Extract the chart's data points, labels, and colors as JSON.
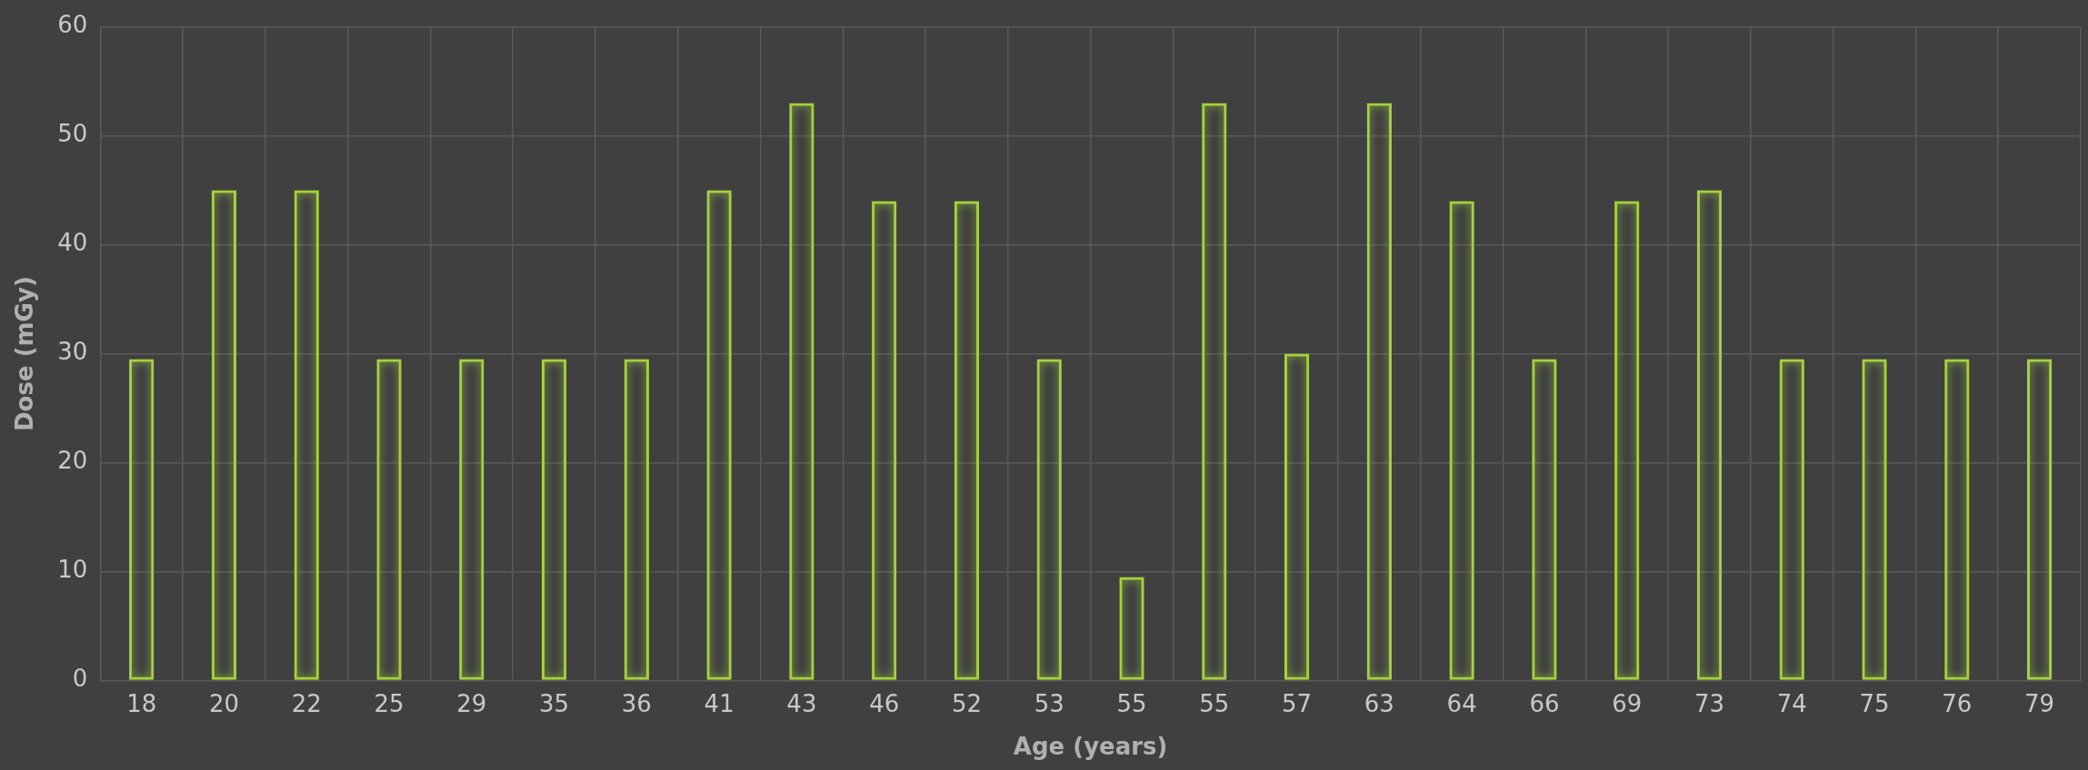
{
  "chart_data": {
    "type": "bar",
    "xlabel": "Age (years)",
    "ylabel": "Dose (mGy)",
    "categories": [
      "18",
      "20",
      "22",
      "25",
      "29",
      "35",
      "36",
      "41",
      "43",
      "46",
      "52",
      "53",
      "55",
      "55",
      "57",
      "63",
      "64",
      "66",
      "69",
      "73",
      "74",
      "75",
      "76",
      "79"
    ],
    "values": [
      29.5,
      45,
      45,
      29.5,
      29.5,
      29.5,
      29.5,
      45,
      53,
      44,
      44,
      29.5,
      9.5,
      53,
      30,
      53,
      44,
      29.5,
      44,
      45,
      29.5,
      29.5,
      29.5,
      29.5
    ],
    "color": "#a4d23c",
    "ylim": [
      0,
      60
    ],
    "yticks": [
      0,
      10,
      20,
      30,
      40,
      50,
      60
    ],
    "grid": true
  }
}
